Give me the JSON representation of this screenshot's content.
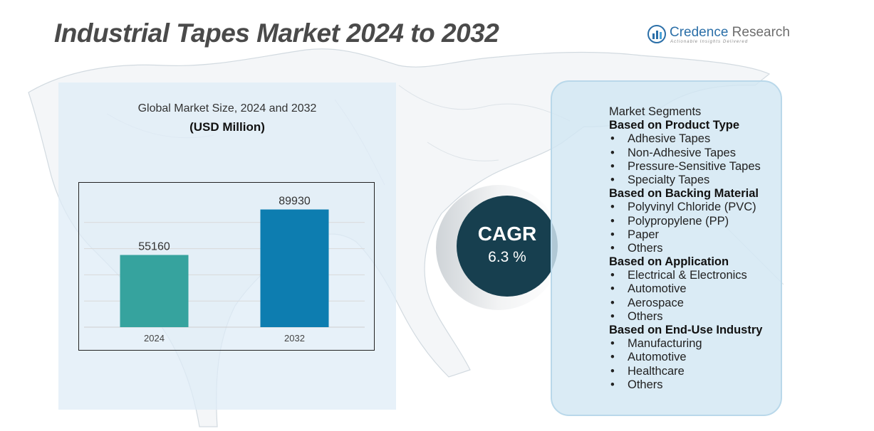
{
  "header": {
    "title": "Industrial Tapes Market 2024 to 2032",
    "logo_name_part1": "Credence",
    "logo_name_part2": " Research",
    "logo_tagline": "Actionable Insights Delivered"
  },
  "colors": {
    "bar_2024": "#36a39e",
    "bar_2032": "#0d7db0",
    "cagr_circle": "#173f4f",
    "panel_bg": "#deecf7",
    "title_text": "#4a4a4a"
  },
  "chart_data": {
    "type": "bar",
    "title": "Global Market Size, 2024 and 2032",
    "unit": "(USD Million)",
    "categories": [
      "2024",
      "2032"
    ],
    "values": [
      55160,
      89930
    ],
    "data_labels": [
      "55160",
      "89930"
    ],
    "ylim": [
      0,
      100000
    ],
    "grid": true,
    "legend": "none"
  },
  "cagr": {
    "label": "CAGR",
    "value": "6.3 %"
  },
  "segments": {
    "heading": "Market Segments",
    "groups": [
      {
        "name": "Based on Product Type",
        "items": [
          "Adhesive Tapes",
          "Non-Adhesive Tapes",
          "Pressure-Sensitive Tapes",
          "Specialty Tapes"
        ]
      },
      {
        "name": "Based on Backing Material",
        "items": [
          "Polyvinyl Chloride (PVC)",
          "Polypropylene (PP)",
          "Paper",
          "Others"
        ]
      },
      {
        "name": "Based on Application",
        "items": [
          "Electrical & Electronics",
          "Automotive",
          "Aerospace",
          "Others"
        ]
      },
      {
        "name": "Based on End-Use Industry",
        "items": [
          "Manufacturing",
          "Automotive",
          "Healthcare",
          "Others"
        ]
      }
    ]
  }
}
